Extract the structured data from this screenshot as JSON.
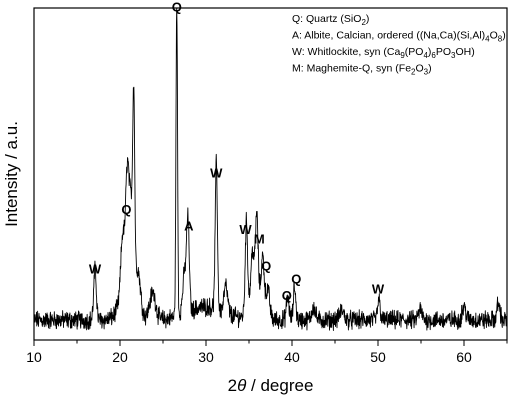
{
  "chart_data": {
    "type": "line",
    "xlabel_prefix": "2",
    "xlabel_theta": "θ",
    "xlabel_suffix": " / degree",
    "ylabel": "Intensity / a.u.",
    "xlim": [
      10,
      65
    ],
    "ylim": [
      0,
      100
    ],
    "xticks": [
      10,
      20,
      30,
      40,
      50,
      60
    ],
    "y_tick_labels_shown": false,
    "grid": false,
    "legend_position": "top-right",
    "line_color": "#000000",
    "legend": [
      {
        "key": "Q",
        "parts": [
          {
            "t": "Q: Quartz (SiO"
          },
          {
            "t": "2",
            "sub": true
          },
          {
            "t": ")"
          }
        ]
      },
      {
        "key": "A",
        "parts": [
          {
            "t": "A: Albite, Calcian, ordered ((Na,Ca)(Si,Al)"
          },
          {
            "t": "4",
            "sub": true
          },
          {
            "t": "O"
          },
          {
            "t": "8",
            "sub": true
          },
          {
            "t": ")"
          }
        ]
      },
      {
        "key": "W",
        "parts": [
          {
            "t": "W: Whitlockite, syn (Ca"
          },
          {
            "t": "9",
            "sub": true
          },
          {
            "t": "(PO"
          },
          {
            "t": "4",
            "sub": true
          },
          {
            "t": ")"
          },
          {
            "t": "6",
            "sub": true
          },
          {
            "t": "PO"
          },
          {
            "t": "3",
            "sub": true
          },
          {
            "t": "OH)"
          }
        ]
      },
      {
        "key": "M",
        "parts": [
          {
            "t": "M: Maghemite-Q, syn (Fe"
          },
          {
            "t": "2",
            "sub": true
          },
          {
            "t": "O"
          },
          {
            "t": "3",
            "sub": true
          },
          {
            "t": ")"
          }
        ]
      }
    ],
    "baseline": 6,
    "peaks": [
      {
        "x": 17.1,
        "y": 15,
        "w": 0.22
      },
      {
        "x": 20.3,
        "y": 17,
        "w": 0.3
      },
      {
        "x": 20.85,
        "y": 33,
        "w": 0.28
      },
      {
        "x": 21.3,
        "y": 23,
        "w": 0.3
      },
      {
        "x": 21.6,
        "y": 52,
        "w": 0.16
      },
      {
        "x": 22.1,
        "y": 10,
        "w": 0.4
      },
      {
        "x": 23.8,
        "y": 8,
        "w": 0.5
      },
      {
        "x": 26.6,
        "y": 94,
        "w": 0.13
      },
      {
        "x": 27.5,
        "y": 12,
        "w": 0.3
      },
      {
        "x": 27.9,
        "y": 27,
        "w": 0.22
      },
      {
        "x": 31.2,
        "y": 44,
        "w": 0.18
      },
      {
        "x": 32.3,
        "y": 8,
        "w": 0.3
      },
      {
        "x": 34.7,
        "y": 27,
        "w": 0.2
      },
      {
        "x": 35.4,
        "y": 14,
        "w": 0.25
      },
      {
        "x": 35.9,
        "y": 24,
        "w": 0.22
      },
      {
        "x": 36.6,
        "y": 15,
        "w": 0.25
      },
      {
        "x": 37.2,
        "y": 8,
        "w": 0.3
      },
      {
        "x": 39.5,
        "y": 7,
        "w": 0.22
      },
      {
        "x": 40.3,
        "y": 10,
        "w": 0.2
      },
      {
        "x": 42.5,
        "y": 4,
        "w": 0.3
      },
      {
        "x": 45.8,
        "y": 3,
        "w": 0.35
      },
      {
        "x": 50.1,
        "y": 6,
        "w": 0.22
      },
      {
        "x": 54.9,
        "y": 3,
        "w": 0.3
      },
      {
        "x": 60.0,
        "y": 4,
        "w": 0.3
      },
      {
        "x": 64.0,
        "y": 5,
        "w": 0.25
      }
    ],
    "humps": [
      {
        "x": 21.0,
        "y": 12,
        "w": 1.2
      },
      {
        "x": 30.0,
        "y": 4,
        "w": 3.0
      },
      {
        "x": 35.8,
        "y": 8,
        "w": 1.0
      }
    ],
    "noise_amplitude": 2.2,
    "peak_labels": [
      {
        "text": "Q",
        "x": 26.6,
        "y": 99
      },
      {
        "text": "Q",
        "x": 20.75,
        "y": 38
      },
      {
        "text": "W",
        "x": 17.1,
        "y": 20
      },
      {
        "text": "W",
        "x": 31.2,
        "y": 49
      },
      {
        "text": "A",
        "x": 28.0,
        "y": 33
      },
      {
        "text": "W",
        "x": 34.6,
        "y": 32
      },
      {
        "text": "M",
        "x": 36.2,
        "y": 29
      },
      {
        "text": "Q",
        "x": 37.0,
        "y": 21
      },
      {
        "text": "Q",
        "x": 39.4,
        "y": 12
      },
      {
        "text": "Q",
        "x": 40.5,
        "y": 17
      },
      {
        "text": "W",
        "x": 50.0,
        "y": 14
      }
    ]
  }
}
